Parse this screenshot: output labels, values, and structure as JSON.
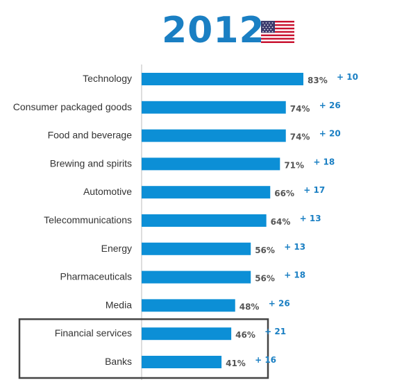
{
  "header": {
    "title": "2012",
    "flag_icon": "us-flag-icon"
  },
  "colors": {
    "bar": "#0c8fd6",
    "title": "#1a7fc3",
    "delta": "#1a7fc3",
    "highlight_box": "#444444",
    "axis": "#bbbbbb"
  },
  "chart_data": {
    "type": "bar",
    "orientation": "horizontal",
    "title": "2012",
    "xlim": [
      0,
      100
    ],
    "grid": false,
    "categories": [
      "Technology",
      "Consumer packaged goods",
      "Food and beverage",
      "Brewing and spirits",
      "Automotive",
      "Telecommunications",
      "Energy",
      "Pharmaceuticals",
      "Media",
      "Financial services",
      "Banks"
    ],
    "values": [
      83,
      74,
      74,
      71,
      66,
      64,
      56,
      56,
      48,
      46,
      41
    ],
    "value_labels": [
      "83%",
      "74%",
      "74%",
      "71%",
      "66%",
      "64%",
      "56%",
      "56%",
      "48%",
      "46%",
      "41%"
    ],
    "changes": [
      10,
      26,
      20,
      18,
      17,
      13,
      13,
      18,
      26,
      21,
      16
    ],
    "change_labels": [
      "+ 10",
      "+ 26",
      "+ 20",
      "+ 18",
      "+ 17",
      "+ 13",
      "+ 13",
      "+ 18",
      "+ 26",
      "+ 21",
      "+ 16"
    ],
    "highlighted_categories": [
      "Financial services",
      "Banks"
    ]
  }
}
